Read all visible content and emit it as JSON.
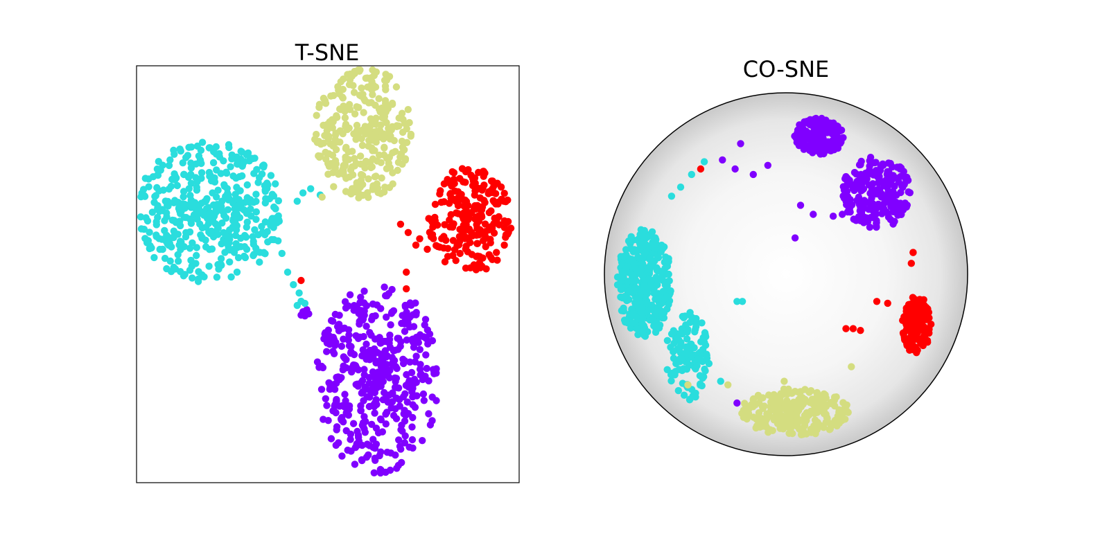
{
  "chart_data": [
    {
      "type": "scatter",
      "title": "T-SNE",
      "colors": [
        "#8000ff",
        "#2adddd",
        "#d4dd80",
        "#ff0000"
      ],
      "xlim": [
        -50,
        50
      ],
      "ylim": [
        -50,
        50
      ],
      "grid": false,
      "ticks": false,
      "series": [
        {
          "color": "#8000ff",
          "clusters": [
            {
              "cx": 13,
              "cy": -25,
              "rx": 16,
              "ry": 23,
              "n": 440,
              "seed": 11
            }
          ],
          "points": [
            [
              -5.5,
              -8.5
            ],
            [
              -6.5,
              -9
            ],
            [
              -5,
              -9.5
            ],
            [
              -6,
              -10
            ],
            [
              -7,
              -9.8
            ]
          ]
        },
        {
          "color": "#2adddd",
          "clusters": [
            {
              "cx": -31,
              "cy": 15,
              "rx": 19,
              "ry": 17,
              "n": 430,
              "seed": 23
            }
          ],
          "points": [
            [
              -2,
              19
            ],
            [
              -4.5,
              20.5
            ],
            [
              -6.5,
              19.5
            ],
            [
              -8,
              17.5
            ],
            [
              -13,
              8
            ],
            [
              -12,
              5
            ],
            [
              -10.5,
              0.5
            ],
            [
              -9,
              -2.5
            ],
            [
              -7.5,
              -4.5
            ],
            [
              -7,
              -6.5
            ],
            [
              -8,
              -7.5
            ],
            [
              -6,
              -7
            ]
          ]
        },
        {
          "color": "#d4dd80",
          "clusters": [
            {
              "cx": 9.5,
              "cy": 34,
              "rx": 13,
              "ry": 16,
              "n": 300,
              "seed": 37
            }
          ],
          "points": [
            [
              5.5,
              27.5
            ],
            [
              6,
              25
            ],
            [
              4.5,
              26
            ],
            [
              1.5,
              21
            ],
            [
              -1.5,
              18.5
            ]
          ]
        },
        {
          "color": "#ff0000",
          "clusters": [
            {
              "cx": 37,
              "cy": 13,
              "rx": 11,
              "ry": 13,
              "n": 230,
              "seed": 53
            }
          ],
          "points": [
            [
              19,
              12
            ],
            [
              21,
              10
            ],
            [
              24,
              8.5
            ],
            [
              23,
              7
            ],
            [
              26,
              6
            ],
            [
              27,
              9
            ],
            [
              20.5,
              0.5
            ],
            [
              20.5,
              -3.5
            ],
            [
              -7,
              -1.5
            ]
          ]
        }
      ]
    },
    {
      "type": "scatter",
      "title": "CO-SNE",
      "colors": [
        "#8000ff",
        "#2adddd",
        "#d4dd80",
        "#ff0000"
      ],
      "xlim": [
        -1,
        1
      ],
      "ylim": [
        -1,
        1
      ],
      "boundary": "poincare-disk",
      "series": [
        {
          "color": "#8000ff",
          "clusters": [
            {
              "cx": 0.18,
              "cy": 0.76,
              "rx": 0.14,
              "ry": 0.1,
              "n": 180,
              "seed": 71
            },
            {
              "cx": 0.5,
              "cy": 0.45,
              "rx": 0.19,
              "ry": 0.2,
              "n": 220,
              "seed": 73
            }
          ],
          "points": [
            [
              -0.25,
              0.72
            ],
            [
              -0.35,
              0.63
            ],
            [
              -0.28,
              0.58
            ],
            [
              -0.18,
              0.55
            ],
            [
              -0.1,
              0.6
            ],
            [
              0.05,
              0.2
            ],
            [
              0.08,
              0.38
            ],
            [
              0.15,
              0.33
            ],
            [
              0.26,
              0.32
            ],
            [
              0.31,
              0.33
            ],
            [
              -0.27,
              -0.71
            ]
          ]
        },
        {
          "color": "#2adddd",
          "clusters": [
            {
              "cx": -0.78,
              "cy": -0.05,
              "rx": 0.15,
              "ry": 0.3,
              "n": 360,
              "seed": 83
            },
            {
              "cx": -0.54,
              "cy": -0.45,
              "rx": 0.12,
              "ry": 0.25,
              "n": 120,
              "seed": 89
            }
          ],
          "points": [
            [
              -0.45,
              0.62
            ],
            [
              -0.52,
              0.55
            ],
            [
              -0.58,
              0.48
            ],
            [
              -0.63,
              0.43
            ],
            [
              -0.27,
              -0.15
            ],
            [
              -0.24,
              -0.15
            ],
            [
              -0.36,
              -0.59
            ]
          ]
        },
        {
          "color": "#d4dd80",
          "clusters": [
            {
              "cx": 0.05,
              "cy": -0.76,
              "rx": 0.3,
              "ry": 0.13,
              "n": 260,
              "seed": 97
            }
          ],
          "points": [
            [
              -0.54,
              -0.61
            ],
            [
              -0.32,
              -0.61
            ],
            [
              -0.01,
              -0.59
            ],
            [
              0.36,
              -0.51
            ]
          ]
        },
        {
          "color": "#ff0000",
          "clusters": [
            {
              "cx": 0.72,
              "cy": -0.28,
              "rx": 0.08,
              "ry": 0.16,
              "n": 180,
              "seed": 101
            }
          ],
          "points": [
            [
              0.33,
              -0.3
            ],
            [
              0.37,
              -0.3
            ],
            [
              0.41,
              -0.31
            ],
            [
              0.5,
              -0.15
            ],
            [
              0.56,
              -0.16
            ],
            [
              0.7,
              0.12
            ],
            [
              0.7,
              -0.13
            ],
            [
              0.69,
              0.06
            ],
            [
              0.7,
              0.12
            ],
            [
              -0.47,
              0.58
            ]
          ]
        }
      ]
    }
  ]
}
